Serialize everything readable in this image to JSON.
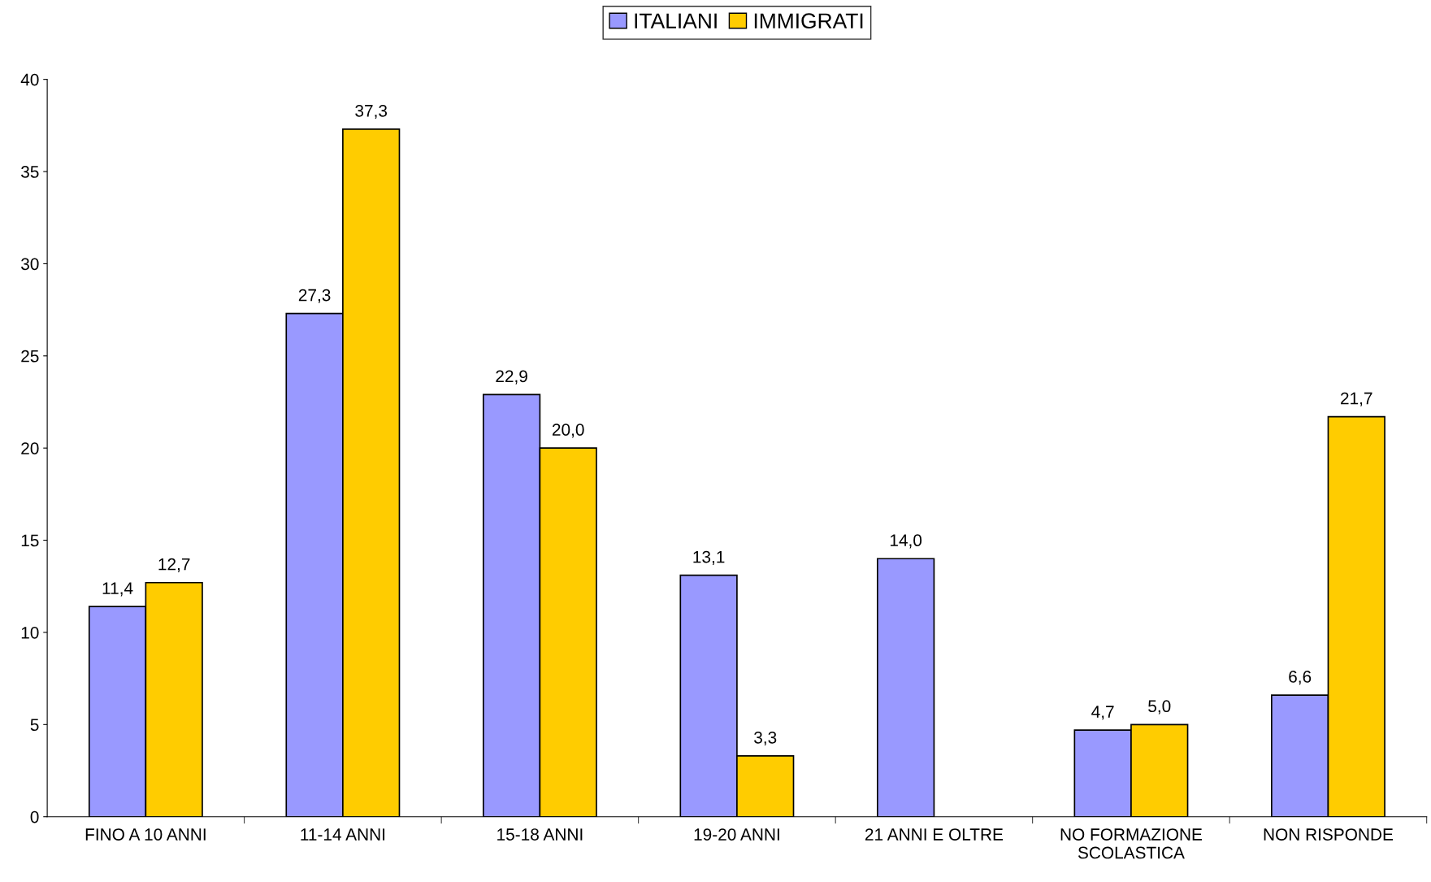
{
  "chart_data": {
    "type": "bar",
    "categories": [
      "FINO A 10 ANNI",
      "11-14 ANNI",
      "15-18 ANNI",
      "19-20 ANNI",
      "21 ANNI E OLTRE",
      "NO FORMAZIONE\nSCOLASTICA",
      "NON RISPONDE"
    ],
    "series": [
      {
        "name": "ITALIANI",
        "color": "#9999ff",
        "values": [
          11.4,
          27.3,
          22.9,
          13.1,
          14.0,
          4.7,
          6.6
        ],
        "value_labels": [
          "11,4",
          "27,3",
          "22,9",
          "13,1",
          "14,0",
          "4,7",
          "6,6"
        ]
      },
      {
        "name": "IMMIGRATI",
        "color": "#ffcc00",
        "values": [
          12.7,
          37.3,
          20.0,
          3.3,
          null,
          5.0,
          21.7
        ],
        "value_labels": [
          "12,7",
          "37,3",
          "20,0",
          "3,3",
          null,
          "5,0",
          "21,7"
        ]
      }
    ],
    "ylim": [
      0,
      40
    ],
    "yticks": [
      0,
      5,
      10,
      15,
      20,
      25,
      30,
      35,
      40
    ],
    "grid": false,
    "legend": "top"
  }
}
